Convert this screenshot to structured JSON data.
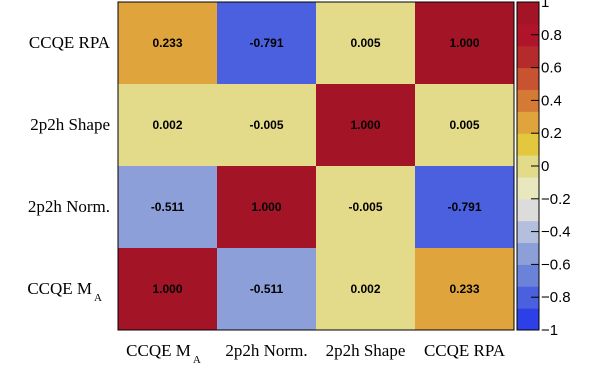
{
  "chart_data": {
    "type": "heatmap",
    "x_labels": [
      {
        "main": "CCQE M",
        "sub": "A"
      },
      {
        "main": "2p2h Norm.",
        "sub": ""
      },
      {
        "main": "2p2h Shape",
        "sub": ""
      },
      {
        "main": "CCQE RPA",
        "sub": ""
      }
    ],
    "y_labels_top_to_bottom": [
      {
        "main": "CCQE RPA",
        "sub": ""
      },
      {
        "main": "2p2h Shape",
        "sub": ""
      },
      {
        "main": "2p2h Norm.",
        "sub": ""
      },
      {
        "main": "CCQE M",
        "sub": "A"
      }
    ],
    "matrix_top_to_bottom": [
      [
        0.233,
        -0.791,
        0.005,
        1.0
      ],
      [
        0.002,
        -0.005,
        1.0,
        0.005
      ],
      [
        -0.511,
        1.0,
        -0.005,
        -0.791
      ],
      [
        1.0,
        -0.511,
        0.002,
        0.233
      ]
    ],
    "cell_text_top_to_bottom": [
      [
        "0.233",
        "-0.791",
        "0.005",
        "1.000"
      ],
      [
        "0.002",
        "-0.005",
        "1.000",
        "0.005"
      ],
      [
        "-0.511",
        "1.000",
        "-0.005",
        "-0.791"
      ],
      [
        "1.000",
        "-0.511",
        "0.002",
        "0.233"
      ]
    ],
    "zlim": [
      -1,
      1
    ],
    "colorbar_ticks": [
      {
        "value": 1,
        "label": "1"
      },
      {
        "value": 0.8,
        "label": "0.8"
      },
      {
        "value": 0.6,
        "label": "0.6"
      },
      {
        "value": 0.4,
        "label": "0.4"
      },
      {
        "value": 0.2,
        "label": "0.2"
      },
      {
        "value": 0,
        "label": "0"
      },
      {
        "value": -0.2,
        "label": "−0.2"
      },
      {
        "value": -0.4,
        "label": "−0.4"
      },
      {
        "value": -0.6,
        "label": "−0.6"
      },
      {
        "value": -0.8,
        "label": "−0.8"
      },
      {
        "value": -1,
        "label": "−1"
      }
    ],
    "colorbar_bins_bottom_to_top": [
      "#2d3fe6",
      "#4a60de",
      "#6b82d9",
      "#8d9fd9",
      "#b4bedd",
      "#dcdcdc",
      "#e8e7bd",
      "#e4db8a",
      "#e3c83d",
      "#e0a43d",
      "#d47a35",
      "#c85330",
      "#b52a2a",
      "#b0142a",
      "#a31526"
    ]
  }
}
